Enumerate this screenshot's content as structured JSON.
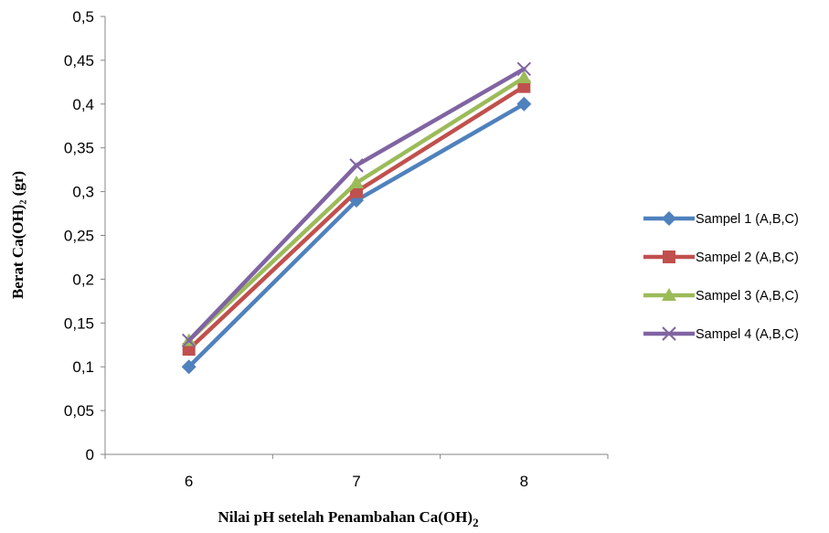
{
  "chart_data": {
    "type": "line",
    "categories": [
      "6",
      "7",
      "8"
    ],
    "series": [
      {
        "name": "Sampel 1 (A,B,C)",
        "values": [
          0.1,
          0.29,
          0.4
        ],
        "color": "#4f81bd",
        "marker": "diamond"
      },
      {
        "name": "Sampel 2 (A,B,C)",
        "values": [
          0.12,
          0.3,
          0.42
        ],
        "color": "#c0504d",
        "marker": "square"
      },
      {
        "name": "Sampel 3 (A,B,C)",
        "values": [
          0.13,
          0.31,
          0.43
        ],
        "color": "#9bbb59",
        "marker": "triangle"
      },
      {
        "name": "Sampel 4 (A,B,C)",
        "values": [
          0.13,
          0.33,
          0.44
        ],
        "color": "#8064a2",
        "marker": "x"
      }
    ],
    "ylim": [
      0,
      0.5
    ],
    "yticks": [
      "0",
      "0,05",
      "0,1",
      "0,15",
      "0,2",
      "0,25",
      "0,3",
      "0,35",
      "0,4",
      "0,45",
      "0,5"
    ],
    "ylabel": "Berat Ca(OH)₂ (gr)",
    "xlabel_main": "Nilai pH setelah Penambahan Ca(OH)",
    "xlabel_sub": "2",
    "legend_position": "right",
    "grid": false
  }
}
